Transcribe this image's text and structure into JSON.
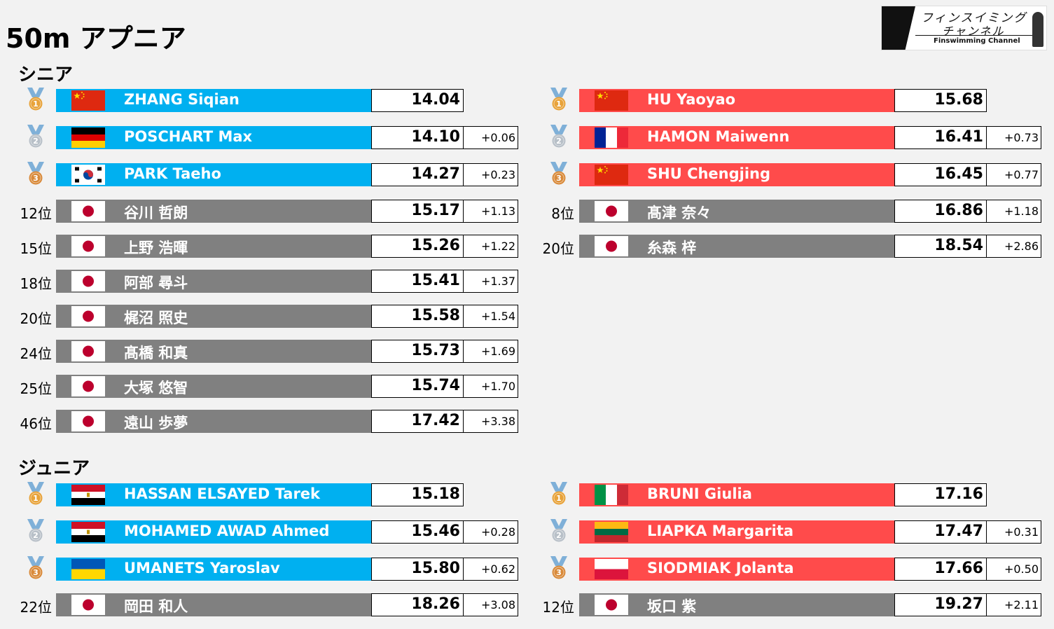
{
  "title": "50m アプニア",
  "logo": {
    "line1": "フィンスイミング",
    "line2": "チャンネル",
    "line3": "Finswimming Channel"
  },
  "colors": {
    "men": "#00b0f0",
    "women": "#ff4b4b",
    "japan": "#808080",
    "gold": "#e8a33a",
    "silver": "#b8c0c8",
    "bronze": "#d98a3a",
    "ribbon": "#7fb0d8"
  },
  "sections": [
    {
      "label": "シニア",
      "columns": [
        {
          "gender": "men",
          "rows": [
            {
              "medal": "1",
              "rank": "",
              "flag": "china",
              "name": "ZHANG Siqian",
              "time": "14.04",
              "diff": ""
            },
            {
              "medal": "2",
              "rank": "",
              "flag": "germany",
              "name": "POSCHART Max",
              "time": "14.10",
              "diff": "+0.06"
            },
            {
              "medal": "3",
              "rank": "",
              "flag": "korea",
              "name": "PARK Taeho",
              "time": "14.27",
              "diff": "+0.23"
            },
            {
              "medal": "",
              "rank": "12位",
              "flag": "japan",
              "name": "谷川 哲朗",
              "time": "15.17",
              "diff": "+1.13"
            },
            {
              "medal": "",
              "rank": "15位",
              "flag": "japan",
              "name": "上野 浩暉",
              "time": "15.26",
              "diff": "+1.22"
            },
            {
              "medal": "",
              "rank": "18位",
              "flag": "japan",
              "name": "阿部 尋斗",
              "time": "15.41",
              "diff": "+1.37"
            },
            {
              "medal": "",
              "rank": "20位",
              "flag": "japan",
              "name": "梶沼 照史",
              "time": "15.58",
              "diff": "+1.54"
            },
            {
              "medal": "",
              "rank": "24位",
              "flag": "japan",
              "name": "髙橋 和真",
              "time": "15.73",
              "diff": "+1.69"
            },
            {
              "medal": "",
              "rank": "25位",
              "flag": "japan",
              "name": "大塚 悠智",
              "time": "15.74",
              "diff": "+1.70"
            },
            {
              "medal": "",
              "rank": "46位",
              "flag": "japan",
              "name": "遠山 歩夢",
              "time": "17.42",
              "diff": "+3.38"
            }
          ]
        },
        {
          "gender": "women",
          "rows": [
            {
              "medal": "1",
              "rank": "",
              "flag": "china",
              "name": "HU Yaoyao",
              "time": "15.68",
              "diff": ""
            },
            {
              "medal": "2",
              "rank": "",
              "flag": "france",
              "name": "HAMON Maiwenn",
              "time": "16.41",
              "diff": "+0.73"
            },
            {
              "medal": "3",
              "rank": "",
              "flag": "china",
              "name": "SHU Chengjing",
              "time": "16.45",
              "diff": "+0.77"
            },
            {
              "medal": "",
              "rank": "8位",
              "flag": "japan",
              "name": "髙津 奈々",
              "time": "16.86",
              "diff": "+1.18"
            },
            {
              "medal": "",
              "rank": "20位",
              "flag": "japan",
              "name": "糸森 梓",
              "time": "18.54",
              "diff": "+2.86"
            }
          ]
        }
      ]
    },
    {
      "label": "ジュニア",
      "columns": [
        {
          "gender": "men",
          "rows": [
            {
              "medal": "1",
              "rank": "",
              "flag": "egypt",
              "name": "HASSAN ELSAYED Tarek",
              "time": "15.18",
              "diff": ""
            },
            {
              "medal": "2",
              "rank": "",
              "flag": "egypt",
              "name": "MOHAMED AWAD Ahmed",
              "time": "15.46",
              "diff": "+0.28"
            },
            {
              "medal": "3",
              "rank": "",
              "flag": "ukraine",
              "name": "UMANETS Yaroslav",
              "time": "15.80",
              "diff": "+0.62"
            },
            {
              "medal": "",
              "rank": "22位",
              "flag": "japan",
              "name": "岡田 和人",
              "time": "18.26",
              "diff": "+3.08"
            }
          ]
        },
        {
          "gender": "women",
          "rows": [
            {
              "medal": "1",
              "rank": "",
              "flag": "italy",
              "name": "BRUNI Giulia",
              "time": "17.16",
              "diff": ""
            },
            {
              "medal": "2",
              "rank": "",
              "flag": "lithuania",
              "name": "LIAPKA Margarita",
              "time": "17.47",
              "diff": "+0.31"
            },
            {
              "medal": "3",
              "rank": "",
              "flag": "poland",
              "name": "SIODMIAK Jolanta",
              "time": "17.66",
              "diff": "+0.50"
            },
            {
              "medal": "",
              "rank": "12位",
              "flag": "japan",
              "name": "坂口 紫",
              "time": "19.27",
              "diff": "+2.11"
            }
          ]
        }
      ]
    }
  ]
}
